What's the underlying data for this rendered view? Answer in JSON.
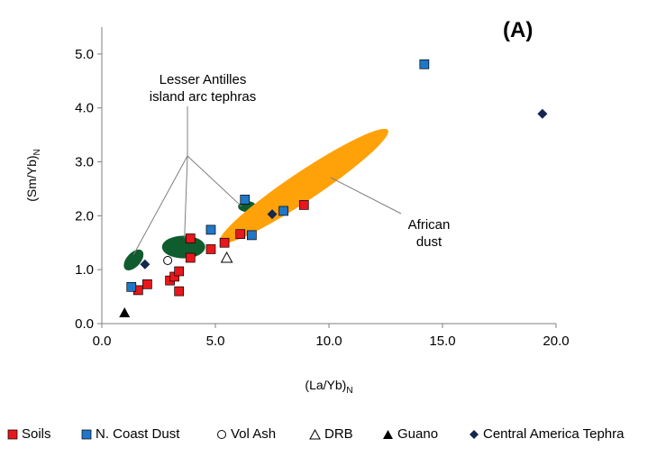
{
  "panel_label": "(A)",
  "annotations": {
    "tephra_label_line1": "Lesser Antilles",
    "tephra_label_line2": "island arc tephras",
    "dust_label_line1": "African",
    "dust_label_line2": "dust"
  },
  "legend": [
    {
      "key": "soils",
      "label": "Soils"
    },
    {
      "key": "ncoast",
      "label": "N. Coast Dust"
    },
    {
      "key": "volash",
      "label": "Vol Ash"
    },
    {
      "key": "drb",
      "label": "DRB"
    },
    {
      "key": "guano",
      "label": "Guano"
    },
    {
      "key": "cat",
      "label": "Central America Tephra"
    }
  ],
  "chart_data": {
    "type": "scatter",
    "xlabel": "(La/Yb)N",
    "ylabel": "(Sm/Yb)N",
    "xlim": [
      0,
      20
    ],
    "ylim": [
      0,
      5.5
    ],
    "x_ticks": [
      "0.0",
      "5.0",
      "10.0",
      "15.0",
      "20.0"
    ],
    "y_ticks": [
      "0.0",
      "1.0",
      "2.0",
      "3.0",
      "4.0",
      "5.0"
    ],
    "colors": {
      "soils": "#e8171b",
      "ncoast": "#1f77c8",
      "volash": "#ffffff",
      "drb": "#ffffff",
      "guano": "#000000",
      "cat": "#15264f",
      "tephra_fields": "#0f5c2e",
      "dust_field": "#ffa20a"
    },
    "series": [
      {
        "name": "Soils",
        "key": "soils",
        "marker": "square",
        "x": [
          1.6,
          2.0,
          3.0,
          3.2,
          3.4,
          3.4,
          3.9,
          3.9,
          4.8,
          5.4,
          6.1,
          8.9
        ],
        "y": [
          0.62,
          0.73,
          0.8,
          0.87,
          0.97,
          0.6,
          1.58,
          1.22,
          1.38,
          1.5,
          1.66,
          2.2
        ]
      },
      {
        "name": "N. Coast Dust",
        "key": "ncoast",
        "marker": "square",
        "x": [
          1.3,
          4.8,
          6.3,
          6.6,
          8.0,
          14.2
        ],
        "y": [
          0.68,
          1.74,
          2.3,
          1.64,
          2.09,
          4.81
        ]
      },
      {
        "name": "Vol Ash",
        "key": "volash",
        "marker": "circle",
        "x": [
          2.9
        ],
        "y": [
          1.17
        ]
      },
      {
        "name": "DRB",
        "key": "drb",
        "marker": "triangle",
        "x": [
          5.5
        ],
        "y": [
          1.22
        ]
      },
      {
        "name": "Guano",
        "key": "guano",
        "marker": "triangle",
        "x": [
          1.0
        ],
        "y": [
          0.2
        ]
      },
      {
        "name": "Central America Tephra",
        "key": "cat",
        "marker": "diamond",
        "x": [
          1.9,
          7.5,
          19.4
        ],
        "y": [
          1.1,
          2.03,
          3.89
        ]
      }
    ],
    "regions": [
      {
        "key": "tephra_a",
        "shape": "ellipse",
        "color_key": "tephra_fields",
        "cx": 1.4,
        "cy": 1.18,
        "rx": 0.55,
        "ry": 0.13,
        "angle": -48
      },
      {
        "key": "tephra_b",
        "shape": "ellipse",
        "color_key": "tephra_fields",
        "cx": 3.6,
        "cy": 1.42,
        "rx": 0.95,
        "ry": 0.21,
        "angle": 0
      },
      {
        "key": "tephra_c",
        "shape": "ellipse",
        "color_key": "tephra_fields",
        "cx": 6.4,
        "cy": 2.17,
        "rx": 0.4,
        "ry": 0.1,
        "angle": 0
      },
      {
        "key": "african_dust",
        "shape": "ellipse",
        "color_key": "dust_field",
        "cx": 8.9,
        "cy": 2.55,
        "rx": 4.55,
        "ry": 0.27,
        "angle": -33.7
      }
    ]
  }
}
